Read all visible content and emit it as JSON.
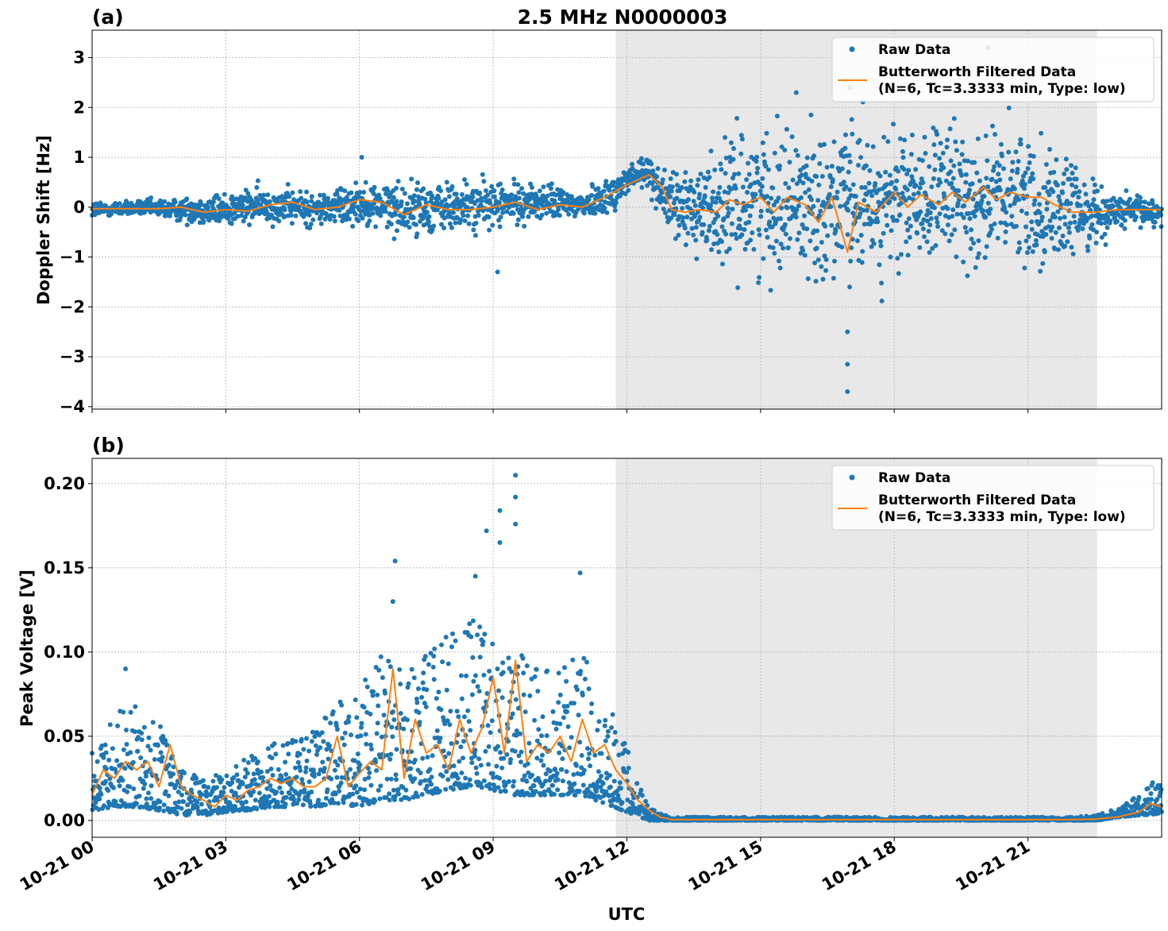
{
  "title": "2.5 MHz N0000003",
  "xlabel": "UTC",
  "colors": {
    "raw": "#1f77b4",
    "filtered": "#ff7f0e",
    "shade": "#e8e8e8",
    "grid": "#b0b0b0"
  },
  "legend": {
    "raw": "Raw Data",
    "filtered_line1": "Butterworth Filtered Data",
    "filtered_line2": "(N=6, Tc=3.3333 min, Type: low)"
  },
  "x_ticks": [
    "10-21 00",
    "10-21 03",
    "10-21 06",
    "10-21 09",
    "10-21 12",
    "10-21 15",
    "10-21 18",
    "10-21 21"
  ],
  "chart_data": [
    {
      "panel": "(a)",
      "type": "scatter",
      "ylabel": "Doppler Shift [Hz]",
      "xlim_hours": [
        0,
        24
      ],
      "ylim": [
        -4.05,
        3.55
      ],
      "y_ticks": [
        3,
        2,
        1,
        0,
        -1,
        -2,
        -3,
        -4
      ],
      "y_tick_labels": [
        "3",
        "2",
        "1",
        "0",
        "−1",
        "−2",
        "−3",
        "−4"
      ],
      "grid": true,
      "legend_position": "top-right",
      "shaded_interval_hours": [
        11.75,
        22.55
      ],
      "series": [
        {
          "name": "Raw Data",
          "kind": "points",
          "envelope_hours": [
            0,
            1,
            2,
            3,
            4,
            5,
            6,
            7,
            8,
            9,
            10,
            11,
            11.75,
            12,
            12.5,
            13,
            14,
            15,
            16,
            17,
            18,
            19,
            20,
            21,
            22,
            22.55,
            23,
            24
          ],
          "envelope_center": [
            -0.05,
            -0.02,
            -0.05,
            -0.05,
            0.05,
            -0.05,
            0.1,
            -0.05,
            0.0,
            0.05,
            0.1,
            0.05,
            0.3,
            0.55,
            0.7,
            0.0,
            0.0,
            0.2,
            0.1,
            0.1,
            0.1,
            0.2,
            0.2,
            0.15,
            -0.1,
            -0.1,
            -0.1,
            -0.1
          ],
          "envelope_spread": [
            0.15,
            0.12,
            0.2,
            0.3,
            0.3,
            0.3,
            0.35,
            0.45,
            0.45,
            0.4,
            0.3,
            0.25,
            0.3,
            0.35,
            0.3,
            0.5,
            1.0,
            1.2,
            1.2,
            1.3,
            1.2,
            1.1,
            1.2,
            1.2,
            0.8,
            0.5,
            0.3,
            0.25
          ],
          "notable_points": [
            {
              "hour": 6.05,
              "y": 1.0
            },
            {
              "hour": 9.1,
              "y": -1.3
            },
            {
              "hour": 16.95,
              "y": -3.7
            },
            {
              "hour": 16.95,
              "y": -3.15
            },
            {
              "hour": 16.95,
              "y": -2.5
            },
            {
              "hour": 15.8,
              "y": 2.3
            },
            {
              "hour": 17.0,
              "y": 2.4
            },
            {
              "hour": 20.1,
              "y": 3.2
            },
            {
              "hour": 17.0,
              "y": -1.6
            }
          ]
        },
        {
          "name": "Butterworth Filtered Data\n(N=6, Tc=3.3333 min, Type: low)",
          "kind": "line",
          "x_hours": [
            0,
            0.5,
            1,
            1.5,
            2,
            2.5,
            3,
            3.5,
            4,
            4.5,
            5,
            5.5,
            6,
            6.5,
            7,
            7.5,
            8,
            8.5,
            9,
            9.5,
            10,
            10.5,
            11,
            11.5,
            12,
            12.5,
            12.8,
            13,
            13.3,
            13.6,
            14,
            14.3,
            14.6,
            15,
            15.3,
            15.6,
            16,
            16.3,
            16.6,
            16.95,
            17.2,
            17.6,
            18,
            18.3,
            18.6,
            19,
            19.3,
            19.6,
            20,
            20.3,
            20.6,
            21,
            21.3,
            21.6,
            22,
            22.5,
            23,
            23.5,
            24
          ],
          "y": [
            -0.03,
            -0.03,
            -0.03,
            -0.03,
            0.0,
            -0.1,
            -0.05,
            -0.08,
            0.05,
            0.1,
            -0.05,
            0.0,
            0.15,
            0.1,
            -0.15,
            0.05,
            -0.05,
            -0.05,
            0.0,
            0.1,
            -0.05,
            0.05,
            0.0,
            0.2,
            0.45,
            0.65,
            0.4,
            -0.05,
            -0.1,
            -0.05,
            -0.1,
            0.15,
            0.05,
            0.2,
            -0.1,
            0.2,
            0.05,
            -0.3,
            0.2,
            -0.9,
            0.1,
            -0.1,
            0.3,
            0.0,
            0.25,
            0.05,
            0.3,
            0.1,
            0.4,
            0.15,
            0.3,
            0.2,
            0.2,
            0.05,
            -0.1,
            -0.1,
            -0.05,
            -0.05,
            -0.05
          ]
        }
      ]
    },
    {
      "panel": "(b)",
      "type": "scatter",
      "ylabel": "Peak Voltage [V]",
      "xlim_hours": [
        0,
        24
      ],
      "ylim": [
        -0.01,
        0.215
      ],
      "y_ticks": [
        0.0,
        0.05,
        0.1,
        0.15,
        0.2
      ],
      "y_tick_labels": [
        "0.00",
        "0.05",
        "0.10",
        "0.15",
        "0.20"
      ],
      "grid": true,
      "legend_position": "top-right",
      "shaded_interval_hours": [
        11.75,
        22.55
      ],
      "series": [
        {
          "name": "Raw Data",
          "kind": "points",
          "envelope_hours": [
            0,
            0.5,
            1,
            1.5,
            2,
            2.5,
            3,
            3.5,
            4,
            4.5,
            5,
            5.5,
            6,
            6.5,
            7,
            7.5,
            8,
            8.5,
            9,
            9.5,
            10,
            10.5,
            11,
            11.5,
            12,
            12.5,
            13,
            14,
            16,
            18,
            20,
            22,
            22.55,
            23,
            23.5,
            24
          ],
          "envelope_low": [
            0.005,
            0.008,
            0.008,
            0.006,
            0.003,
            0.003,
            0.005,
            0.006,
            0.008,
            0.008,
            0.008,
            0.01,
            0.008,
            0.012,
            0.012,
            0.015,
            0.018,
            0.02,
            0.018,
            0.015,
            0.015,
            0.015,
            0.015,
            0.01,
            0.005,
            0.0,
            0.0,
            0.0,
            0.0,
            0.0,
            0.0,
            0.0,
            0.0,
            0.002,
            0.003,
            0.004
          ],
          "envelope_high": [
            0.04,
            0.065,
            0.068,
            0.06,
            0.03,
            0.025,
            0.03,
            0.038,
            0.045,
            0.05,
            0.06,
            0.07,
            0.08,
            0.1,
            0.095,
            0.1,
            0.11,
            0.12,
            0.11,
            0.1,
            0.095,
            0.09,
            0.1,
            0.075,
            0.045,
            0.008,
            0.002,
            0.002,
            0.002,
            0.002,
            0.002,
            0.002,
            0.003,
            0.008,
            0.015,
            0.028
          ],
          "notable_points": [
            {
              "hour": 0.75,
              "y": 0.09
            },
            {
              "hour": 6.8,
              "y": 0.154
            },
            {
              "hour": 6.75,
              "y": 0.13
            },
            {
              "hour": 8.85,
              "y": 0.172
            },
            {
              "hour": 9.15,
              "y": 0.184
            },
            {
              "hour": 9.5,
              "y": 0.205
            },
            {
              "hour": 9.5,
              "y": 0.192
            },
            {
              "hour": 9.5,
              "y": 0.176
            },
            {
              "hour": 10.95,
              "y": 0.147
            },
            {
              "hour": 9.15,
              "y": 0.165
            },
            {
              "hour": 8.6,
              "y": 0.145
            }
          ]
        },
        {
          "name": "Butterworth Filtered Data\n(N=6, Tc=3.3333 min, Type: low)",
          "kind": "line",
          "x_hours": [
            0,
            0.25,
            0.5,
            0.75,
            1,
            1.25,
            1.5,
            1.75,
            2,
            2.25,
            2.5,
            2.75,
            3,
            3.25,
            3.5,
            3.75,
            4,
            4.25,
            4.5,
            4.75,
            5,
            5.25,
            5.5,
            5.75,
            6,
            6.25,
            6.5,
            6.75,
            7,
            7.25,
            7.5,
            7.75,
            8,
            8.25,
            8.5,
            8.75,
            9,
            9.25,
            9.5,
            9.75,
            10,
            10.25,
            10.5,
            10.75,
            11,
            11.25,
            11.5,
            11.75,
            12,
            12.25,
            12.5,
            12.75,
            13,
            14,
            16,
            18,
            20,
            22,
            22.5,
            23,
            23.5,
            23.75,
            24
          ],
          "y": [
            0.015,
            0.03,
            0.025,
            0.035,
            0.03,
            0.035,
            0.02,
            0.045,
            0.02,
            0.015,
            0.012,
            0.008,
            0.015,
            0.012,
            0.018,
            0.02,
            0.025,
            0.022,
            0.025,
            0.02,
            0.02,
            0.025,
            0.05,
            0.02,
            0.028,
            0.035,
            0.03,
            0.09,
            0.025,
            0.06,
            0.04,
            0.045,
            0.03,
            0.06,
            0.04,
            0.055,
            0.085,
            0.04,
            0.095,
            0.035,
            0.045,
            0.04,
            0.05,
            0.035,
            0.06,
            0.04,
            0.045,
            0.03,
            0.022,
            0.012,
            0.006,
            0.002,
            0.0005,
            0.0005,
            0.0005,
            0.0005,
            0.0005,
            0.0005,
            0.0008,
            0.002,
            0.005,
            0.01,
            0.008
          ]
        }
      ]
    }
  ]
}
